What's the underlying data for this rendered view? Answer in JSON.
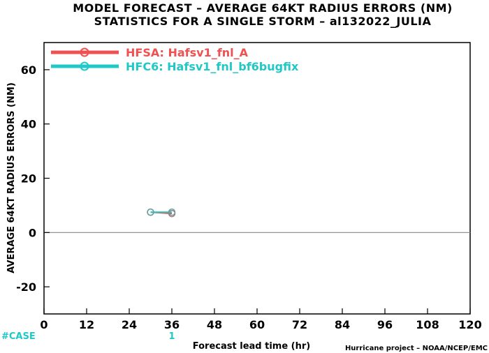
{
  "title_line1": "MODEL FORECAST – AVERAGE 64KT RADIUS ERRORS (NM)",
  "title_line2": "STATISTICS FOR A SINGLE STORM – al132022_JULIA",
  "credit": "Hurricane project – NOAA/NCEP/EMC",
  "case_label": "#CASE",
  "colors": {
    "hfsa": "#f05050",
    "hfc6": "#20c8c8",
    "case": "#20c8c8",
    "axis": "#000000",
    "zero_line": "#888888"
  },
  "chart_data": {
    "type": "line",
    "title": "MODEL FORECAST – AVERAGE 64KT RADIUS ERRORS (NM)",
    "subtitle": "STATISTICS FOR A SINGLE STORM – al132022_JULIA",
    "xlabel": "Forecast lead time (hr)",
    "ylabel": "AVERAGE 64KT RADIUS ERRORS (NM)",
    "xlim": [
      0,
      120
    ],
    "ylim": [
      -30,
      70
    ],
    "xticks": [
      0,
      12,
      24,
      36,
      48,
      60,
      72,
      84,
      96,
      108,
      120
    ],
    "yticks": [
      -20,
      0,
      20,
      40,
      60
    ],
    "grid": false,
    "legend_position": "top-left",
    "series": [
      {
        "name": "HFSA: Hafsv1_fnl_A",
        "color": "#f05050",
        "x": [
          30,
          36
        ],
        "y": [
          7.5,
          7.0
        ]
      },
      {
        "name": "HFC6: Hafsv1_fnl_bf6bugfix",
        "color": "#20c8c8",
        "x": [
          30,
          36
        ],
        "y": [
          7.5,
          7.5
        ]
      }
    ],
    "case_counts": [
      {
        "x": 36,
        "count": "1"
      }
    ]
  }
}
